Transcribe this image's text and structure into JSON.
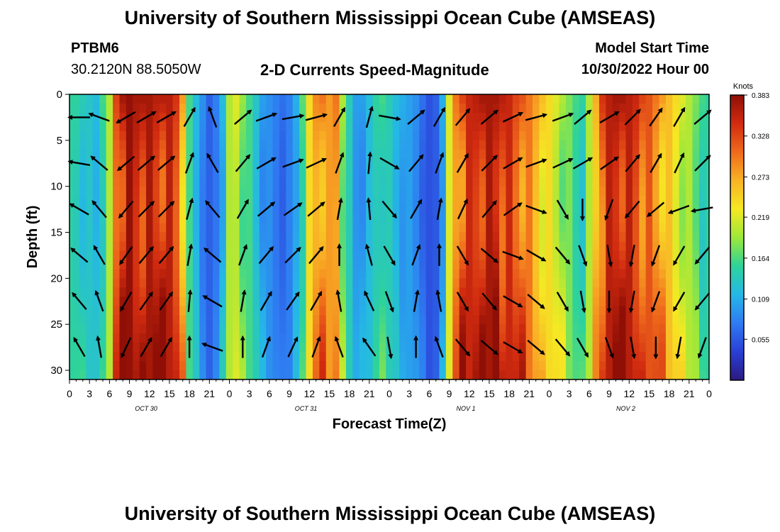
{
  "header": {
    "title": "University of Southern Mississippi Ocean Cube (AMSEAS)",
    "station_id": "PTBM6",
    "coordinates": "30.2120N  88.5050W",
    "product": "2-D Currents Speed-Magnitude",
    "model_start_label": "Model Start Time",
    "model_start_value": "10/30/2022 Hour 00"
  },
  "footer": {
    "title": "University of Southern Mississippi Ocean Cube (AMSEAS)"
  },
  "chart_data": {
    "type": "heatmap",
    "xlabel": "Forecast Time(Z)",
    "ylabel": "Depth (ft)",
    "x_hours_range": [
      0,
      96
    ],
    "y_range": [
      0,
      31
    ],
    "y_reversed": true,
    "x_tick_labels": [
      "0",
      "3",
      "6",
      "9",
      "12",
      "15",
      "18",
      "21",
      "0",
      "3",
      "6",
      "9",
      "12",
      "15",
      "18",
      "21",
      "0",
      "3",
      "6",
      "9",
      "12",
      "15",
      "18",
      "21",
      "0",
      "3",
      "6",
      "9",
      "12",
      "15",
      "18",
      "21",
      "0"
    ],
    "y_ticks": [
      0,
      5,
      10,
      15,
      20,
      25,
      30
    ],
    "day_labels": [
      {
        "text": "OCT 30",
        "hour": 11.5
      },
      {
        "text": "OCT 31",
        "hour": 35.5
      },
      {
        "text": "NOV 1",
        "hour": 59.5
      },
      {
        "text": "NOV 2",
        "hour": 83.5
      }
    ],
    "colorbar": {
      "unit": "Knots",
      "min": 0.0,
      "max": 0.383,
      "ticks": [
        "0.383",
        "0.328",
        "0.273",
        "0.219",
        "0.164",
        "0.109",
        "0.055"
      ],
      "tick_values": [
        0.383,
        0.328,
        0.273,
        0.219,
        0.164,
        0.109,
        0.055
      ],
      "colors": [
        "#2b1a80",
        "#2a3fd6",
        "#2f7bf2",
        "#25b8e6",
        "#2ed39a",
        "#9de83a",
        "#f5e923",
        "#f9b325",
        "#ef6a1c",
        "#d12b10",
        "#8f0f06"
      ]
    },
    "speed_profile_by_hour": [
      {
        "h": 0,
        "v": 0.15
      },
      {
        "h": 1,
        "v": 0.15
      },
      {
        "h": 2,
        "v": 0.14
      },
      {
        "h": 3,
        "v": 0.13
      },
      {
        "h": 4,
        "v": 0.12
      },
      {
        "h": 5,
        "v": 0.16
      },
      {
        "h": 6,
        "v": 0.2
      },
      {
        "h": 7,
        "v": 0.33
      },
      {
        "h": 8,
        "v": 0.37
      },
      {
        "h": 9,
        "v": 0.38
      },
      {
        "h": 10,
        "v": 0.37
      },
      {
        "h": 11,
        "v": 0.37
      },
      {
        "h": 12,
        "v": 0.37
      },
      {
        "h": 13,
        "v": 0.36
      },
      {
        "h": 14,
        "v": 0.36
      },
      {
        "h": 15,
        "v": 0.36
      },
      {
        "h": 16,
        "v": 0.34
      },
      {
        "h": 17,
        "v": 0.28
      },
      {
        "h": 18,
        "v": 0.16
      },
      {
        "h": 19,
        "v": 0.12
      },
      {
        "h": 20,
        "v": 0.09
      },
      {
        "h": 21,
        "v": 0.06
      },
      {
        "h": 22,
        "v": 0.08
      },
      {
        "h": 23,
        "v": 0.12
      },
      {
        "h": 24,
        "v": 0.2
      },
      {
        "h": 25,
        "v": 0.22
      },
      {
        "h": 26,
        "v": 0.19
      },
      {
        "h": 27,
        "v": 0.16
      },
      {
        "h": 28,
        "v": 0.13
      },
      {
        "h": 29,
        "v": 0.1
      },
      {
        "h": 30,
        "v": 0.09
      },
      {
        "h": 31,
        "v": 0.08
      },
      {
        "h": 32,
        "v": 0.07
      },
      {
        "h": 33,
        "v": 0.08
      },
      {
        "h": 34,
        "v": 0.11
      },
      {
        "h": 35,
        "v": 0.17
      },
      {
        "h": 36,
        "v": 0.24
      },
      {
        "h": 37,
        "v": 0.29
      },
      {
        "h": 38,
        "v": 0.3
      },
      {
        "h": 39,
        "v": 0.28
      },
      {
        "h": 40,
        "v": 0.3
      },
      {
        "h": 41,
        "v": 0.2
      },
      {
        "h": 42,
        "v": 0.14
      },
      {
        "h": 43,
        "v": 0.1
      },
      {
        "h": 44,
        "v": 0.1
      },
      {
        "h": 45,
        "v": 0.12
      },
      {
        "h": 46,
        "v": 0.15
      },
      {
        "h": 47,
        "v": 0.16
      },
      {
        "h": 48,
        "v": 0.14
      },
      {
        "h": 49,
        "v": 0.12
      },
      {
        "h": 50,
        "v": 0.11
      },
      {
        "h": 51,
        "v": 0.1
      },
      {
        "h": 52,
        "v": 0.09
      },
      {
        "h": 53,
        "v": 0.07
      },
      {
        "h": 54,
        "v": 0.05
      },
      {
        "h": 55,
        "v": 0.06
      },
      {
        "h": 56,
        "v": 0.11
      },
      {
        "h": 57,
        "v": 0.22
      },
      {
        "h": 58,
        "v": 0.3
      },
      {
        "h": 59,
        "v": 0.33
      },
      {
        "h": 60,
        "v": 0.35
      },
      {
        "h": 61,
        "v": 0.36
      },
      {
        "h": 62,
        "v": 0.37
      },
      {
        "h": 63,
        "v": 0.37
      },
      {
        "h": 64,
        "v": 0.37
      },
      {
        "h": 65,
        "v": 0.36
      },
      {
        "h": 66,
        "v": 0.35
      },
      {
        "h": 67,
        "v": 0.33
      },
      {
        "h": 68,
        "v": 0.32
      },
      {
        "h": 69,
        "v": 0.3
      },
      {
        "h": 70,
        "v": 0.28
      },
      {
        "h": 71,
        "v": 0.26
      },
      {
        "h": 72,
        "v": 0.24
      },
      {
        "h": 73,
        "v": 0.22
      },
      {
        "h": 74,
        "v": 0.2
      },
      {
        "h": 75,
        "v": 0.18
      },
      {
        "h": 76,
        "v": 0.16
      },
      {
        "h": 77,
        "v": 0.15
      },
      {
        "h": 78,
        "v": 0.2
      },
      {
        "h": 79,
        "v": 0.27
      },
      {
        "h": 80,
        "v": 0.34
      },
      {
        "h": 81,
        "v": 0.36
      },
      {
        "h": 82,
        "v": 0.37
      },
      {
        "h": 83,
        "v": 0.37
      },
      {
        "h": 84,
        "v": 0.36
      },
      {
        "h": 85,
        "v": 0.35
      },
      {
        "h": 86,
        "v": 0.33
      },
      {
        "h": 87,
        "v": 0.32
      },
      {
        "h": 88,
        "v": 0.3
      },
      {
        "h": 89,
        "v": 0.28
      },
      {
        "h": 90,
        "v": 0.26
      },
      {
        "h": 91,
        "v": 0.24
      },
      {
        "h": 92,
        "v": 0.22
      },
      {
        "h": 93,
        "v": 0.2
      },
      {
        "h": 94,
        "v": 0.18
      },
      {
        "h": 95,
        "v": 0.16
      },
      {
        "h": 96,
        "v": 0.15
      }
    ],
    "arrow_grid": {
      "hours": [
        1.5,
        4.5,
        8.5,
        11.5,
        14.5,
        18,
        21.5,
        26,
        29.5,
        33.5,
        37,
        40.5,
        45,
        48,
        52,
        55.5,
        59,
        63,
        66.5,
        70,
        74,
        77,
        81,
        84.5,
        88,
        91.5,
        95
      ],
      "depths": [
        2.5,
        7.5,
        12.5,
        17.5,
        22.5,
        27.5
      ],
      "pattern": [
        [
          180,
          160,
          210,
          30,
          30,
          60,
          110,
          40,
          20,
          10,
          15,
          60,
          75,
          350,
          40,
          60,
          50,
          40,
          25,
          15,
          20,
          40,
          30,
          45,
          55,
          60,
          40
        ],
        [
          170,
          140,
          220,
          40,
          40,
          70,
          120,
          50,
          30,
          20,
          25,
          70,
          85,
          330,
          50,
          70,
          60,
          45,
          30,
          20,
          25,
          30,
          35,
          50,
          60,
          65,
          45
        ],
        [
          150,
          130,
          230,
          45,
          45,
          75,
          130,
          60,
          40,
          35,
          40,
          80,
          95,
          310,
          60,
          80,
          65,
          50,
          35,
          340,
          300,
          270,
          250,
          230,
          220,
          200,
          190
        ],
        [
          140,
          120,
          235,
          50,
          50,
          80,
          140,
          70,
          50,
          45,
          50,
          90,
          105,
          300,
          70,
          90,
          300,
          320,
          340,
          330,
          310,
          290,
          280,
          260,
          250,
          240,
          230
        ],
        [
          130,
          110,
          240,
          55,
          55,
          85,
          150,
          80,
          60,
          55,
          60,
          100,
          115,
          290,
          80,
          100,
          300,
          310,
          330,
          320,
          300,
          280,
          270,
          260,
          250,
          240,
          230
        ],
        [
          120,
          100,
          245,
          60,
          60,
          90,
          160,
          90,
          70,
          65,
          70,
          110,
          125,
          280,
          90,
          110,
          310,
          320,
          330,
          320,
          310,
          300,
          290,
          280,
          270,
          260,
          250
        ]
      ]
    }
  }
}
